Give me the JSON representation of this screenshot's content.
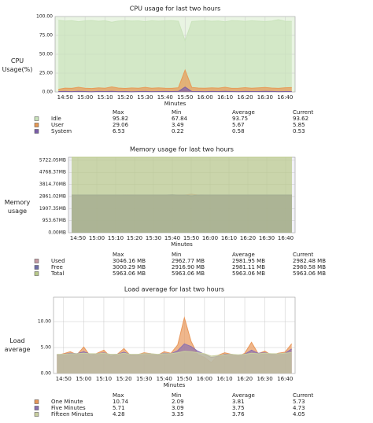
{
  "chart_data": [
    {
      "type": "area",
      "title": "CPU usage for last two hours",
      "ylabel": "CPU Usage(%)",
      "xlabel": "Minutes",
      "xtick_labels": [
        "14:50",
        "15:00",
        "15:10",
        "15:20",
        "15:30",
        "15:40",
        "15:50",
        "16:00",
        "16:10",
        "16:20",
        "16:30",
        "16:40"
      ],
      "ylim": [
        0,
        100
      ],
      "yticks": [
        {
          "value": 0,
          "label": "0.00"
        },
        {
          "value": 25,
          "label": "25.00"
        },
        {
          "value": 50,
          "label": "50.00"
        },
        {
          "value": 75,
          "label": "75.00"
        },
        {
          "value": 100,
          "label": "100.00"
        }
      ],
      "background": "#e9f4e3",
      "stats_header": [
        "Max",
        "Min",
        "Average",
        "Current"
      ],
      "series": [
        {
          "name": "Idle",
          "color": "#c9e3bb",
          "stats": [
            95.82,
            67.84,
            93.75,
            93.62
          ],
          "values": [
            95.0,
            94.1,
            94.5,
            93.1,
            94.3,
            94.7,
            93.8,
            94.4,
            92.5,
            94.1,
            94.6,
            94.0,
            94.3,
            93.2,
            94.4,
            93.9,
            94.3,
            94.5,
            93.7,
            67.84,
            93.4,
            94.1,
            94.4,
            93.8,
            94.2,
            93.0,
            94.5,
            94.3,
            93.6,
            94.4,
            93.9,
            93.3,
            94.1,
            95.82,
            93.7,
            93.62
          ]
        },
        {
          "name": "User",
          "color": "#e89a55",
          "stats": [
            29.06,
            3.49,
            5.67,
            5.85
          ],
          "values": [
            3.49,
            5.1,
            4.8,
            6.2,
            5.0,
            4.6,
            5.5,
            4.9,
            6.8,
            5.2,
            4.7,
            5.3,
            5.0,
            6.1,
            4.9,
            5.4,
            5.0,
            4.8,
            5.6,
            29.06,
            6.0,
            5.2,
            4.9,
            5.5,
            5.1,
            6.3,
            4.8,
            5.0,
            5.7,
            4.9,
            5.4,
            6.0,
            5.2,
            4.8,
            5.6,
            5.85
          ]
        },
        {
          "name": "System",
          "color": "#7b5ea8",
          "stats": [
            6.53,
            0.22,
            0.58,
            0.53
          ],
          "values": [
            0.5,
            0.6,
            0.4,
            0.7,
            0.5,
            0.3,
            0.6,
            0.5,
            0.8,
            0.4,
            0.5,
            0.22,
            0.5,
            0.6,
            0.4,
            0.5,
            0.6,
            0.5,
            0.7,
            6.53,
            0.6,
            0.5,
            0.4,
            0.6,
            0.5,
            0.7,
            0.5,
            0.4,
            0.6,
            0.5,
            0.5,
            0.7,
            0.6,
            0.4,
            0.5,
            0.53
          ]
        }
      ]
    },
    {
      "type": "area",
      "title": "Memory usage for last two hours",
      "ylabel": "Memory usage",
      "xlabel": "Minutes",
      "xtick_labels": [
        "14:50",
        "15:00",
        "15:10",
        "15:20",
        "15:30",
        "15:40",
        "15:50",
        "16:00",
        "16:10",
        "16:20",
        "16:30",
        "16:40"
      ],
      "ylim": [
        0,
        5963.06
      ],
      "yticks": [
        {
          "value": 0,
          "label": "0.00MB"
        },
        {
          "value": 953.67,
          "label": "953.67MB"
        },
        {
          "value": 1907.35,
          "label": "1907.35MB"
        },
        {
          "value": 2861.02,
          "label": "2861.02MB"
        },
        {
          "value": 3814.7,
          "label": "3814.70MB"
        },
        {
          "value": 4768.37,
          "label": "4768.37MB"
        },
        {
          "value": 5722.05,
          "label": "5722.05MB"
        }
      ],
      "background": "#f1f1f7",
      "stats_header": [
        "Max",
        "Min",
        "Average",
        "Current"
      ],
      "series": [
        {
          "name": "Used",
          "color": "#c79aa4",
          "stats": [
            "3046.16 MB",
            "2962.77 MB",
            "2981.95 MB",
            "2982.48 MB"
          ],
          "values": [
            2982.1,
            2981.5,
            2983.0,
            2979.8,
            2980.6,
            2984.2,
            2981.0,
            2978.9,
            2982.7,
            2985.1,
            2980.2,
            2981.9,
            2979.4,
            2983.3,
            2982.0,
            2980.8,
            2962.77,
            2984.6,
            2981.2,
            3046.16,
            2990.4,
            2982.3,
            2979.7,
            2981.4,
            2983.8,
            2980.1,
            2982.9,
            2981.6,
            2979.9,
            2983.1,
            2981.8,
            2980.4,
            2982.5,
            2984.0,
            2981.3,
            2982.48
          ]
        },
        {
          "name": "Free",
          "color": "#6e6ea8",
          "stats": [
            "3000.29 MB",
            "2916.90 MB",
            "2981.11 MB",
            "2980.58 MB"
          ],
          "values": [
            2980.9,
            2981.5,
            2980.0,
            2983.2,
            2982.4,
            2978.8,
            2982.0,
            2984.1,
            2980.3,
            2977.9,
            2982.8,
            2981.1,
            2983.6,
            2979.7,
            2981.0,
            2982.2,
            3000.29,
            2978.4,
            2981.8,
            2916.9,
            2972.6,
            2980.7,
            2983.3,
            2981.6,
            2979.2,
            2982.9,
            2980.1,
            2981.4,
            2983.1,
            2979.9,
            2981.2,
            2982.6,
            2980.5,
            2979.0,
            2981.7,
            2980.58
          ]
        },
        {
          "name": "Total",
          "color": "#b9c98a",
          "stats": [
            "5963.06 MB",
            "5963.06 MB",
            "5963.06 MB",
            "5963.06 MB"
          ],
          "values": [
            5963.06,
            5963.06,
            5963.06,
            5963.06,
            5963.06,
            5963.06,
            5963.06,
            5963.06,
            5963.06,
            5963.06,
            5963.06,
            5963.06,
            5963.06,
            5963.06,
            5963.06,
            5963.06,
            5963.06,
            5963.06,
            5963.06,
            5963.06,
            5963.06,
            5963.06,
            5963.06,
            5963.06,
            5963.06,
            5963.06,
            5963.06,
            5963.06,
            5963.06,
            5963.06,
            5963.06,
            5963.06,
            5963.06,
            5963.06,
            5963.06,
            5963.06
          ]
        }
      ]
    },
    {
      "type": "area",
      "title": "Load average for last two hours",
      "ylabel": "Load average",
      "xlabel": "Minutes",
      "xtick_labels": [
        "14:50",
        "15:00",
        "15:10",
        "15:20",
        "15:30",
        "15:40",
        "15:50",
        "16:00",
        "16:10",
        "16:20",
        "16:30",
        "16:40"
      ],
      "ylim": [
        0,
        14.7
      ],
      "yticks": [
        {
          "value": 0,
          "label": "0.00"
        },
        {
          "value": 5,
          "label": "5.00"
        },
        {
          "value": 10,
          "label": "10.00"
        }
      ],
      "background": "#ffffff",
      "stats_header": [
        "Max",
        "Min",
        "Average",
        "Current"
      ],
      "series": [
        {
          "name": "One Minute",
          "color": "#e8975a",
          "stats": [
            10.74,
            2.09,
            3.81,
            5.73
          ],
          "values": [
            3.5,
            3.8,
            4.2,
            3.6,
            5.1,
            3.3,
            3.9,
            4.5,
            3.2,
            3.7,
            4.8,
            3.4,
            3.6,
            4.0,
            3.8,
            3.5,
            4.2,
            3.9,
            5.5,
            10.74,
            6.2,
            3.6,
            3.1,
            2.09,
            3.5,
            4.0,
            3.7,
            3.3,
            3.9,
            6.0,
            3.8,
            4.3,
            3.5,
            3.9,
            4.1,
            5.73
          ]
        },
        {
          "name": "Five Minutes",
          "color": "#8a70b0",
          "stats": [
            5.71,
            3.09,
            3.75,
            4.73
          ],
          "values": [
            3.6,
            3.7,
            3.9,
            3.8,
            4.2,
            3.7,
            3.8,
            4.0,
            3.6,
            3.7,
            4.1,
            3.6,
            3.6,
            3.8,
            3.8,
            3.6,
            3.9,
            3.8,
            4.4,
            5.71,
            5.2,
            4.3,
            3.7,
            3.09,
            3.3,
            3.7,
            3.7,
            3.5,
            3.7,
            4.5,
            3.9,
            4.0,
            3.7,
            3.8,
            3.9,
            4.73
          ]
        },
        {
          "name": "Fifteen Minutes",
          "color": "#c9cfa0",
          "stats": [
            4.28,
            3.35,
            3.76,
            4.05
          ],
          "values": [
            3.7,
            3.7,
            3.8,
            3.8,
            3.9,
            3.8,
            3.8,
            3.9,
            3.7,
            3.7,
            3.9,
            3.7,
            3.7,
            3.8,
            3.8,
            3.7,
            3.8,
            3.8,
            4.0,
            4.28,
            4.2,
            4.0,
            3.8,
            3.35,
            3.5,
            3.6,
            3.7,
            3.6,
            3.7,
            3.9,
            3.8,
            3.9,
            3.8,
            3.8,
            3.9,
            4.05
          ]
        }
      ]
    }
  ]
}
